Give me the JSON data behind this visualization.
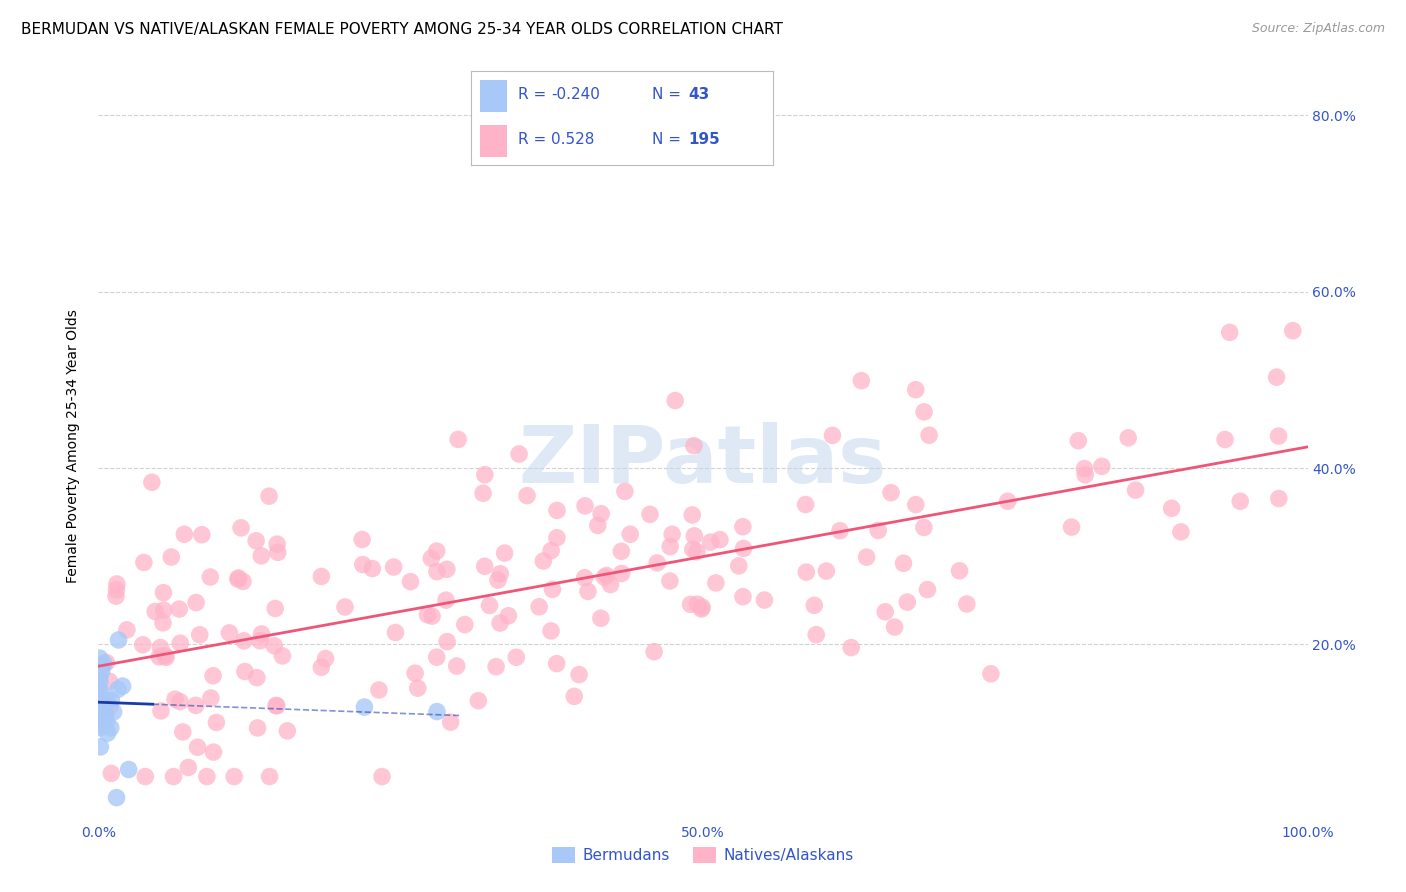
{
  "title": "BERMUDAN VS NATIVE/ALASKAN FEMALE POVERTY AMONG 25-34 YEAR OLDS CORRELATION CHART",
  "source": "Source: ZipAtlas.com",
  "ylabel": "Female Poverty Among 25-34 Year Olds",
  "xlim": [
    0,
    1.0
  ],
  "ylim": [
    0,
    0.85
  ],
  "x_ticks": [
    0.0,
    0.1,
    0.2,
    0.3,
    0.4,
    0.5,
    0.6,
    0.7,
    0.8,
    0.9,
    1.0
  ],
  "x_tick_labels": [
    "0.0%",
    "",
    "",
    "",
    "",
    "50.0%",
    "",
    "",
    "",
    "",
    "100.0%"
  ],
  "y_ticks": [
    0.2,
    0.4,
    0.6,
    0.8
  ],
  "y_tick_labels": [
    "20.0%",
    "40.0%",
    "60.0%",
    "80.0%"
  ],
  "bermuda_color": "#a8c8f8",
  "native_color": "#ffb3c8",
  "bermuda_line_color": "#1a3aaa",
  "native_line_color": "#ee5577",
  "legend_text_color": "#3355cc",
  "background_color": "#ffffff",
  "grid_color": "#cccccc",
  "watermark": "ZIPatlas",
  "watermark_color": "#c5d8ee",
  "title_fontsize": 11,
  "axis_label_fontsize": 10,
  "tick_fontsize": 10,
  "source_fontsize": 9
}
